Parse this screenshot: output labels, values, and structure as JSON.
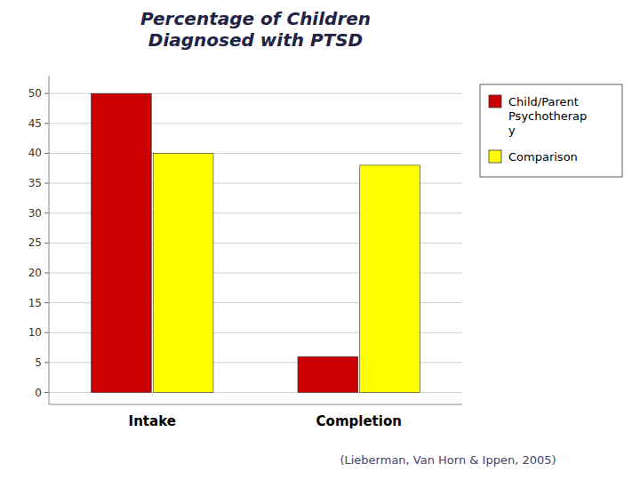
{
  "chart_data": {
    "type": "bar",
    "title": "Percentage of Children\nDiagnosed with PTSD",
    "subtitle": "(Lieberman, Van Horn & Ippen, 2005)",
    "categories": [
      "Intake",
      "Completion"
    ],
    "series": [
      {
        "name": "Child/Parent\nPsychotherap\ny",
        "color": "#CC0000",
        "values": [
          50,
          6
        ]
      },
      {
        "name": "Comparison",
        "color": "#FFFF00",
        "values": [
          40,
          38
        ]
      }
    ],
    "ylim": [
      -2,
      53
    ],
    "yticks": [
      0,
      5,
      10,
      15,
      20,
      25,
      30,
      35,
      40,
      45,
      50
    ],
    "grid": true,
    "legend": "right"
  }
}
